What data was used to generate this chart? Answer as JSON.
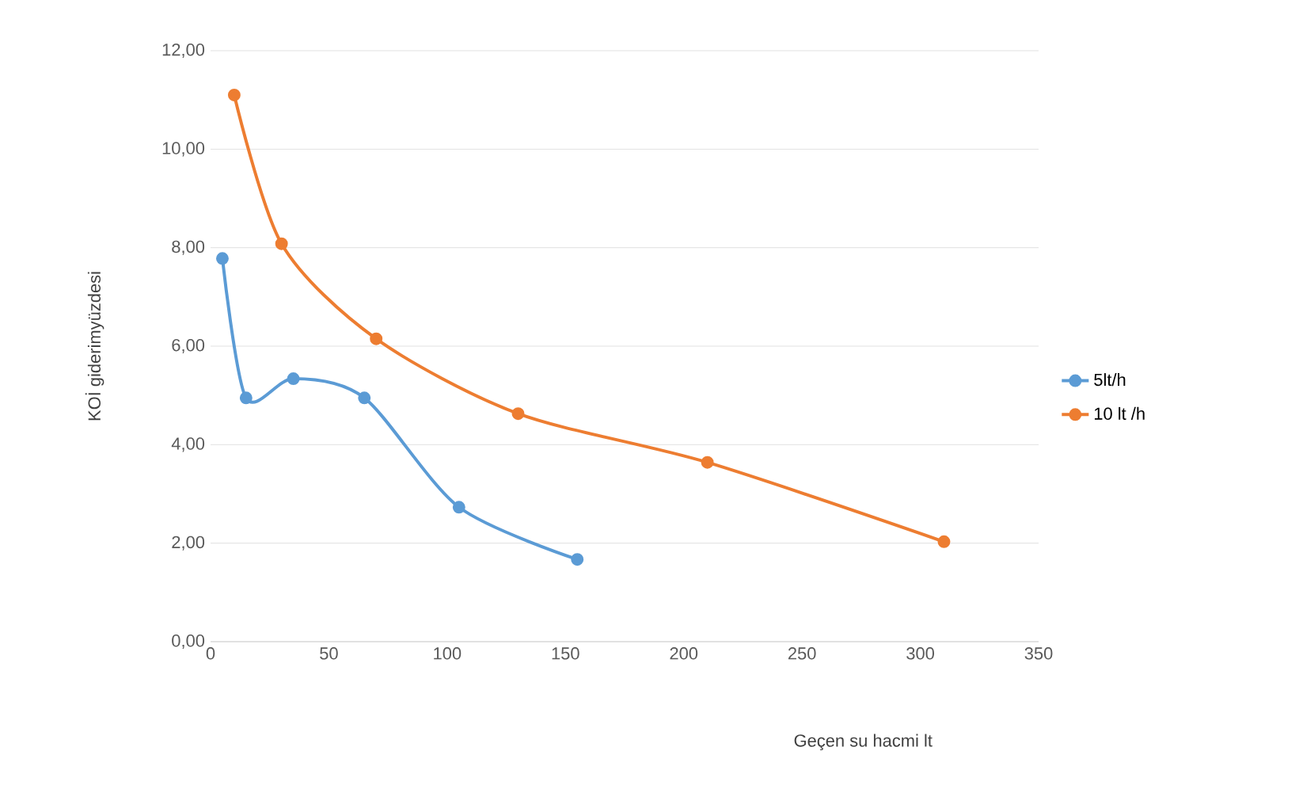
{
  "chart_data": {
    "type": "line",
    "xlabel": "Geçen su hacmi  lt",
    "ylabel": "KOİ giderimyüzdesi",
    "xlim": [
      0,
      350
    ],
    "xticks": [
      0,
      50,
      100,
      150,
      200,
      250,
      300,
      350
    ],
    "ylim": [
      0,
      12
    ],
    "yticks": [
      {
        "value": 0,
        "label": "0,00"
      },
      {
        "value": 2,
        "label": "2,00"
      },
      {
        "value": 4,
        "label": "4,00"
      },
      {
        "value": 6,
        "label": "6,00"
      },
      {
        "value": 8,
        "label": "8,00"
      },
      {
        "value": 10,
        "label": "10,00"
      },
      {
        "value": 12,
        "label": "12,00"
      }
    ],
    "grid": "y",
    "legend": "right",
    "marker": "circle",
    "series": [
      {
        "name": "5lt/h",
        "color": "#5b9bd5",
        "x": [
          5,
          15,
          35,
          65,
          105,
          155
        ],
        "values": [
          7.78,
          4.95,
          5.34,
          4.95,
          2.73,
          1.67
        ]
      },
      {
        "name": "10 lt /h",
        "color": "#ed7d31",
        "x": [
          10,
          30,
          70,
          130,
          210,
          310
        ],
        "values": [
          11.1,
          8.08,
          6.15,
          4.63,
          3.64,
          2.03
        ]
      }
    ]
  }
}
